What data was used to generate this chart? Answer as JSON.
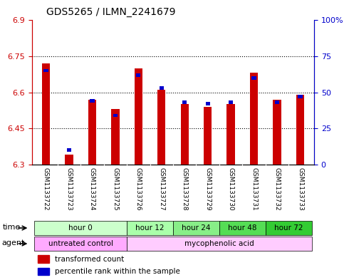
{
  "title": "GDS5265 / ILMN_2241679",
  "samples": [
    "GSM1133722",
    "GSM1133723",
    "GSM1133724",
    "GSM1133725",
    "GSM1133726",
    "GSM1133727",
    "GSM1133728",
    "GSM1133729",
    "GSM1133730",
    "GSM1133731",
    "GSM1133732",
    "GSM1133733"
  ],
  "transformed_counts": [
    6.72,
    6.34,
    6.57,
    6.53,
    6.7,
    6.61,
    6.55,
    6.54,
    6.55,
    6.68,
    6.57,
    6.59
  ],
  "percentile_ranks": [
    65,
    10,
    44,
    34,
    62,
    53,
    43,
    42,
    43,
    60,
    43,
    47
  ],
  "y_min": 6.3,
  "y_max": 6.9,
  "y_ticks": [
    6.3,
    6.45,
    6.6,
    6.75,
    6.9
  ],
  "y2_ticks": [
    0,
    25,
    50,
    75,
    100
  ],
  "y2_labels": [
    "0",
    "25",
    "50",
    "75",
    "100%"
  ],
  "bar_color_red": "#cc0000",
  "bar_color_blue": "#0000cc",
  "time_groups": [
    {
      "label": "hour 0",
      "start": 0,
      "end": 3,
      "color": "#ccffcc"
    },
    {
      "label": "hour 12",
      "start": 4,
      "end": 5,
      "color": "#aaffaa"
    },
    {
      "label": "hour 24",
      "start": 6,
      "end": 7,
      "color": "#88ee88"
    },
    {
      "label": "hour 48",
      "start": 8,
      "end": 9,
      "color": "#55dd55"
    },
    {
      "label": "hour 72",
      "start": 10,
      "end": 11,
      "color": "#33cc33"
    }
  ],
  "agent_groups": [
    {
      "label": "untreated control",
      "start": 0,
      "end": 3,
      "color": "#ffaaff"
    },
    {
      "label": "mycophenolic acid",
      "start": 4,
      "end": 11,
      "color": "#ffccff"
    }
  ],
  "legend_red": "transformed count",
  "legend_blue": "percentile rank within the sample",
  "background_color": "#ffffff",
  "plot_bg": "#ffffff",
  "sample_bg": "#d3d3d3"
}
